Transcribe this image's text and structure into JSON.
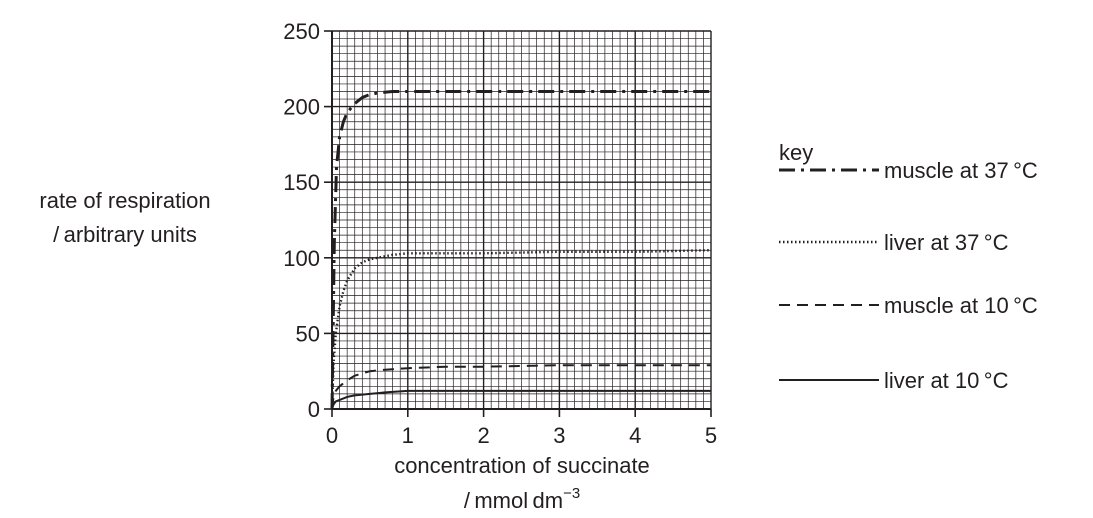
{
  "chart_data": {
    "type": "line",
    "ylabel_lines": [
      "rate of respiration",
      "/ arbitrary units"
    ],
    "xlabel_lines": [
      "concentration of succinate"
    ],
    "xlabel_unit": {
      "prefix": "/ mmol dm",
      "superscript": "−3"
    },
    "xlim": [
      0,
      5
    ],
    "ylim": [
      0,
      250
    ],
    "xticks": [
      0,
      1,
      2,
      3,
      4,
      5
    ],
    "yticks": [
      0,
      50,
      100,
      150,
      200,
      250
    ],
    "xtick_labels": [
      "0",
      "1",
      "2",
      "3",
      "4",
      "5"
    ],
    "ytick_labels": [
      "0",
      "50",
      "100",
      "150",
      "200",
      "250"
    ],
    "grid": true,
    "legend_title": "key",
    "legend_position": "right",
    "series": [
      {
        "name": "muscle at 37 °C",
        "style": "dashdot",
        "x": [
          0,
          0.03,
          0.06,
          0.1,
          0.15,
          0.2,
          0.3,
          0.4,
          0.5,
          0.6,
          0.8,
          1.0,
          2.0,
          3.0,
          4.0,
          5.0
        ],
        "y": [
          0,
          110,
          160,
          180,
          190,
          196,
          202,
          206,
          208,
          209,
          210,
          210,
          210,
          210,
          210,
          210
        ]
      },
      {
        "name": "liver at 37 °C",
        "style": "dotted",
        "x": [
          0,
          0.02,
          0.05,
          0.1,
          0.15,
          0.2,
          0.3,
          0.4,
          0.5,
          0.6,
          0.8,
          1.0,
          1.5,
          2.0,
          3.0,
          4.0,
          5.0
        ],
        "y": [
          0,
          30,
          50,
          68,
          78,
          85,
          93,
          97,
          99,
          100,
          102,
          103,
          103,
          103,
          104,
          104,
          105
        ]
      },
      {
        "name": "muscle at 10 °C",
        "style": "dashed",
        "x": [
          0,
          0.02,
          0.05,
          0.1,
          0.2,
          0.3,
          0.5,
          0.7,
          1.0,
          1.5,
          2.0,
          3.0,
          4.0,
          5.0
        ],
        "y": [
          0,
          8,
          12,
          15,
          19,
          22,
          25,
          26,
          27,
          28,
          28,
          29,
          29,
          29
        ]
      },
      {
        "name": "liver at 10 °C",
        "style": "solid",
        "x": [
          0,
          0.02,
          0.05,
          0.1,
          0.2,
          0.3,
          0.5,
          0.7,
          1.0,
          1.5,
          2.0,
          3.0,
          4.0,
          5.0
        ],
        "y": [
          0,
          3,
          5,
          6,
          8,
          9,
          10,
          11,
          12,
          12,
          12,
          12,
          12,
          12
        ]
      }
    ]
  }
}
